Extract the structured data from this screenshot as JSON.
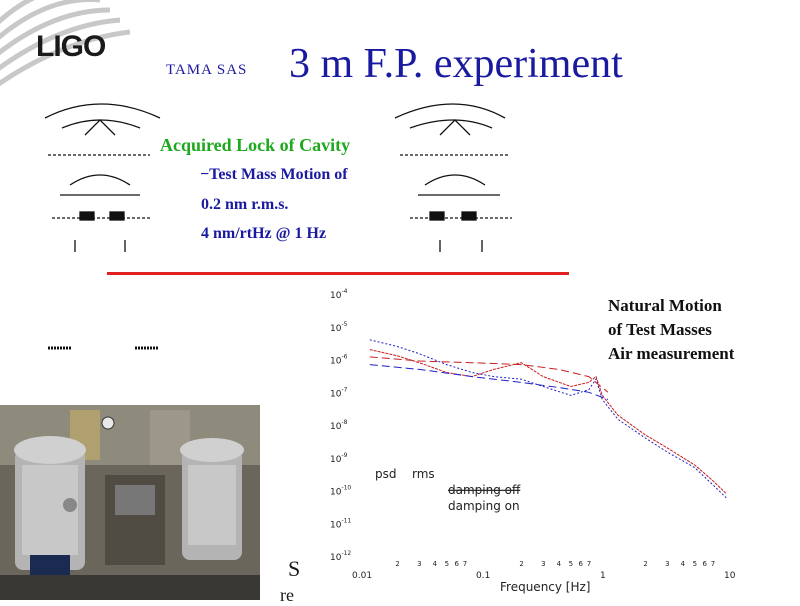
{
  "header": {
    "logo_text": "LIGO",
    "title_prefix": "TAMA SAS",
    "title_main": "3 m F.P. experiment"
  },
  "bullets": {
    "main": "Acquired Lock of Cavity",
    "sub": [
      "−Test Mass Motion of",
      "0.2 nm r.m.s.",
      "4 nm/rtHz @ 1 Hz"
    ]
  },
  "schematic": {
    "labels": [
      "  ",
      "  "
    ]
  },
  "caption": {
    "line1": "S",
    "line2": "re"
  },
  "plot_title": [
    "Natural Motion",
    "of Test Masses",
    "Air measurement"
  ],
  "chart_data": {
    "type": "line",
    "xlabel": "Frequency [Hz]",
    "ylabel": "",
    "xscale": "log",
    "yscale": "log",
    "xlim": [
      0.01,
      10
    ],
    "ylim": [
      1e-12,
      0.0001
    ],
    "x_tick_labels": [
      "0.01",
      "0.1",
      "1",
      "10"
    ],
    "x_minor_tick_labels": [
      "2",
      "3",
      "4",
      "5",
      "6",
      "7"
    ],
    "y_tick_labels": [
      {
        "base": "10",
        "exp": "-4"
      },
      {
        "base": "10",
        "exp": "-5"
      },
      {
        "base": "10",
        "exp": "-6"
      },
      {
        "base": "10",
        "exp": "-7"
      },
      {
        "base": "10",
        "exp": "-8"
      },
      {
        "base": "10",
        "exp": "-9"
      },
      {
        "base": "10",
        "exp": "-10"
      },
      {
        "base": "10",
        "exp": "-11"
      },
      {
        "base": "10",
        "exp": "-12"
      }
    ],
    "annotations": [
      "psd",
      "rms"
    ],
    "legend_entries": [
      "damping off",
      "damping on"
    ],
    "series": [
      {
        "color": "#c81e1e",
        "style": "solid",
        "points": [
          [
            0.012,
            2e-06
          ],
          [
            0.02,
            1.3e-06
          ],
          [
            0.03,
            8e-07
          ],
          [
            0.05,
            4e-07
          ],
          [
            0.08,
            3e-07
          ],
          [
            0.12,
            5e-07
          ],
          [
            0.2,
            8e-07
          ],
          [
            0.3,
            3e-07
          ],
          [
            0.5,
            1.5e-07
          ],
          [
            0.7,
            2e-07
          ],
          [
            0.8,
            3e-07
          ],
          [
            0.9,
            8e-08
          ],
          [
            1.2,
            2e-08
          ],
          [
            2,
            5e-09
          ],
          [
            3,
            2e-09
          ],
          [
            5,
            6e-10
          ],
          [
            7,
            2e-10
          ],
          [
            9,
            8e-11
          ]
        ]
      },
      {
        "color": "#1e1ec8",
        "style": "solid",
        "points": [
          [
            0.012,
            4e-06
          ],
          [
            0.02,
            2.5e-06
          ],
          [
            0.03,
            1.5e-06
          ],
          [
            0.05,
            7e-07
          ],
          [
            0.08,
            4e-07
          ],
          [
            0.12,
            3e-07
          ],
          [
            0.2,
            2.5e-07
          ],
          [
            0.3,
            1.5e-07
          ],
          [
            0.5,
            8e-08
          ],
          [
            0.7,
            1.2e-07
          ],
          [
            0.8,
            2.5e-07
          ],
          [
            0.9,
            6e-08
          ],
          [
            1.2,
            1.5e-08
          ],
          [
            2,
            4e-09
          ],
          [
            3,
            1.5e-09
          ],
          [
            5,
            5e-10
          ],
          [
            7,
            1.5e-10
          ],
          [
            9,
            6e-11
          ]
        ]
      },
      {
        "color": "#c81e1e",
        "style": "dashed",
        "points": [
          [
            0.012,
            1.2e-06
          ],
          [
            0.03,
            9e-07
          ],
          [
            0.08,
            8e-07
          ],
          [
            0.2,
            7e-07
          ],
          [
            0.4,
            5e-07
          ],
          [
            0.7,
            3e-07
          ],
          [
            1,
            1e-07
          ]
        ]
      },
      {
        "color": "#1e1ec8",
        "style": "dashed",
        "points": [
          [
            0.012,
            7e-07
          ],
          [
            0.03,
            5e-07
          ],
          [
            0.08,
            3e-07
          ],
          [
            0.2,
            2e-07
          ],
          [
            0.4,
            1.4e-07
          ],
          [
            0.7,
            1e-07
          ],
          [
            1,
            6e-08
          ]
        ]
      }
    ]
  }
}
